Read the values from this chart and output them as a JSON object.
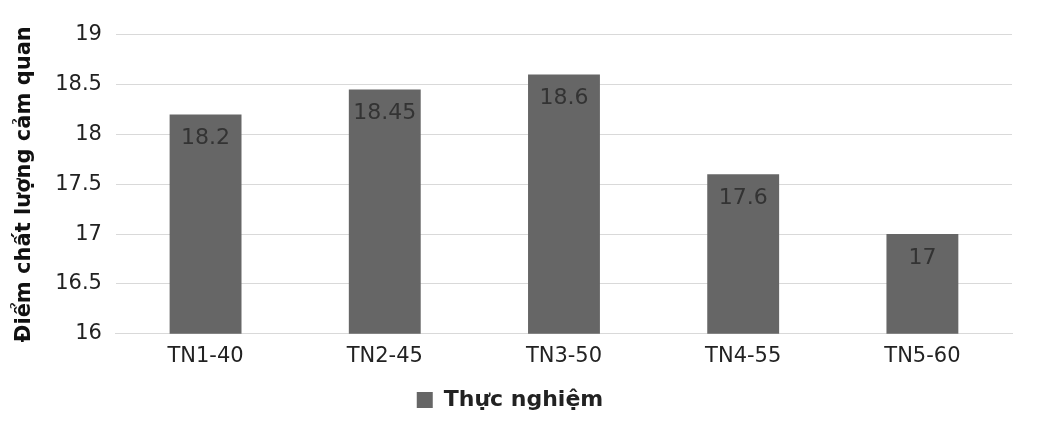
{
  "chart_data": {
    "type": "bar",
    "ylabel": "Điểm chất lượng cảm quan",
    "categories": [
      "TN1-40",
      "TN2-45",
      "TN3-50",
      "TN4-55",
      "TN5-60"
    ],
    "series": [
      {
        "name": "Thực nghiệm",
        "color": "#666666",
        "values": [
          18.2,
          18.45,
          18.6,
          17.6,
          17
        ]
      }
    ],
    "ylim": [
      16,
      19
    ],
    "yticks": [
      16,
      16.5,
      17,
      17.5,
      18,
      18.5,
      19
    ],
    "grid": "y",
    "legend": "bottom",
    "data_labels": true
  }
}
